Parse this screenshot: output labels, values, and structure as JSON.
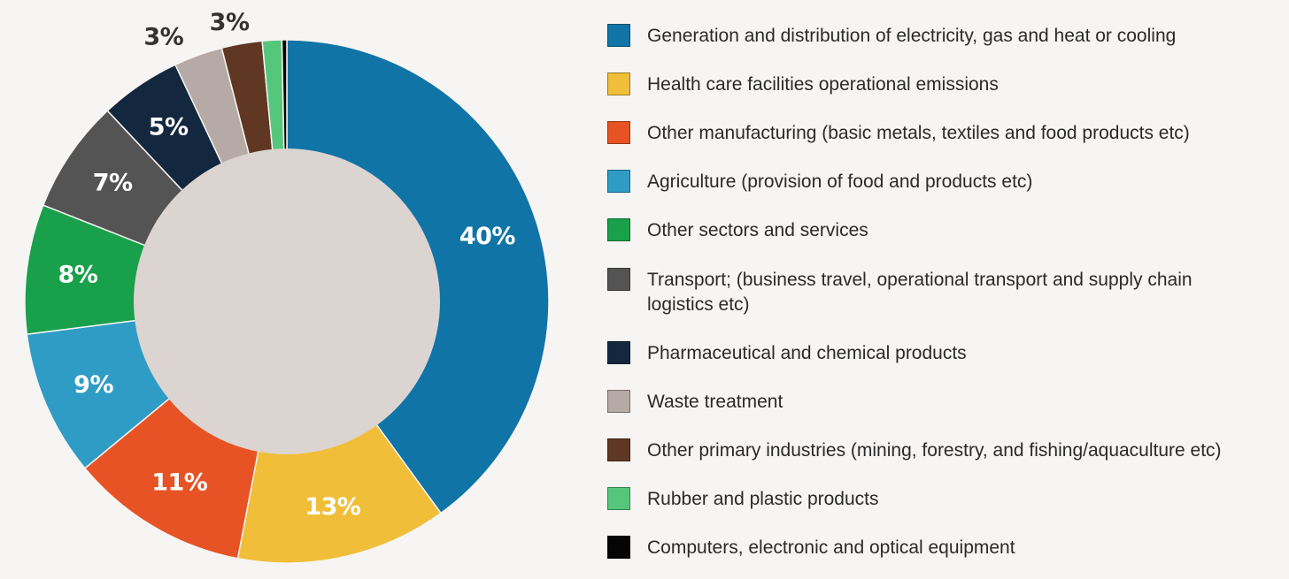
{
  "chart_data": {
    "type": "pie",
    "variant": "donut",
    "title": "",
    "legend_position": "right",
    "slices": [
      {
        "name": "Generation and distribution of electricity, gas and heat or cooling",
        "value": 40,
        "label": "40%",
        "color": "#1174a7",
        "label_color": "#ffffff"
      },
      {
        "name": "Health care facilities operational emissions",
        "value": 13,
        "label": "13%",
        "color": "#f0be38",
        "label_color": "#ffffff"
      },
      {
        "name": "Other manufacturing (basic metals, textiles and food products etc)",
        "value": 11,
        "label": "11%",
        "color": "#e75325",
        "label_color": "#ffffff"
      },
      {
        "name": "Agriculture (provision of food and products etc)",
        "value": 9,
        "label": "9%",
        "color": "#2f9cc5",
        "label_color": "#ffffff"
      },
      {
        "name": "Other sectors and services",
        "value": 8,
        "label": "8%",
        "color": "#18a04a",
        "label_color": "#ffffff"
      },
      {
        "name": "Transport; (business travel, operational transport and supply chain logistics etc)",
        "value": 7,
        "label": "7%",
        "color": "#545454",
        "label_color": "#ffffff"
      },
      {
        "name": "Pharmaceutical and chemical products",
        "value": 5,
        "label": "5%",
        "color": "#13273f",
        "label_color": "#ffffff"
      },
      {
        "name": "Waste treatment",
        "value": 3,
        "label": "3%",
        "color": "#b6aaa6",
        "label_color": "#333333"
      },
      {
        "name": "Other primary industries (mining, forestry, and fishing/aquaculture etc)",
        "value": 2.5,
        "label": "3%",
        "color": "#5f3723",
        "label_color": "#333333"
      },
      {
        "name": "Rubber and plastic products",
        "value": 1.2,
        "label": "",
        "color": "#55c77b",
        "label_color": "#333333"
      },
      {
        "name": "Computers, electronic and optical equipment",
        "value": 0.3,
        "label": "",
        "color": "#050505",
        "label_color": "#333333"
      }
    ]
  },
  "colors": {
    "background": "#f7f5f3",
    "donut_hole": "#dcd4d0"
  }
}
